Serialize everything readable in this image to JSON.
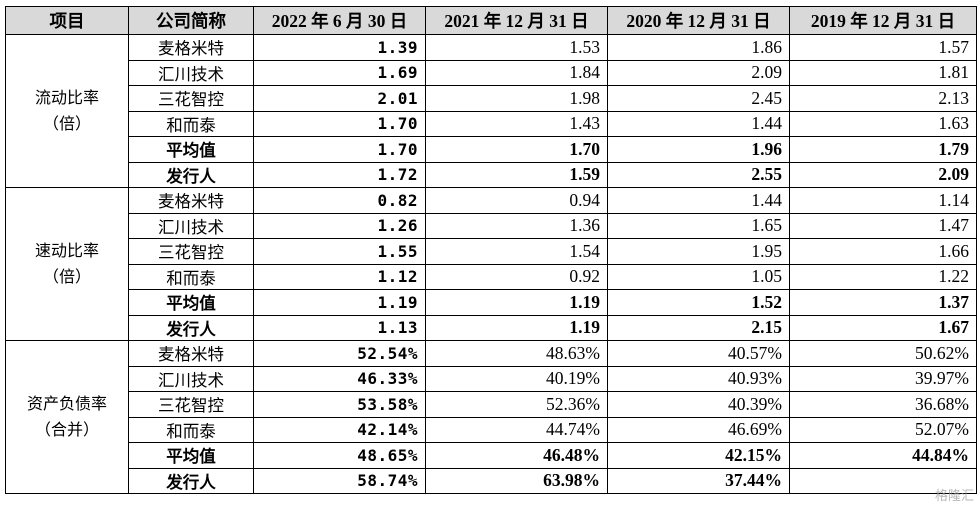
{
  "header": {
    "item": "项目",
    "company": "公司简称",
    "periods": [
      "2022 年 6 月 30 日",
      "2021 年 12 月 31 日",
      "2020 年 12 月 31 日",
      "2019 年 12 月 31 日"
    ]
  },
  "groups": [
    {
      "metric_line1": "流动比率",
      "metric_line2": "（倍）",
      "rows": [
        {
          "company": "麦格米特",
          "bold": false,
          "values": [
            "1.39",
            "1.53",
            "1.86",
            "1.57"
          ]
        },
        {
          "company": "汇川技术",
          "bold": false,
          "values": [
            "1.69",
            "1.84",
            "2.09",
            "1.81"
          ]
        },
        {
          "company": "三花智控",
          "bold": false,
          "values": [
            "2.01",
            "1.98",
            "2.45",
            "2.13"
          ]
        },
        {
          "company": "和而泰",
          "bold": false,
          "values": [
            "1.70",
            "1.43",
            "1.44",
            "1.63"
          ]
        },
        {
          "company": "平均值",
          "bold": true,
          "values": [
            "1.70",
            "1.70",
            "1.96",
            "1.79"
          ]
        },
        {
          "company": "发行人",
          "bold": true,
          "values": [
            "1.72",
            "1.59",
            "2.55",
            "2.09"
          ]
        }
      ]
    },
    {
      "metric_line1": "速动比率",
      "metric_line2": "（倍）",
      "rows": [
        {
          "company": "麦格米特",
          "bold": false,
          "values": [
            "0.82",
            "0.94",
            "1.44",
            "1.14"
          ]
        },
        {
          "company": "汇川技术",
          "bold": false,
          "values": [
            "1.26",
            "1.36",
            "1.65",
            "1.47"
          ]
        },
        {
          "company": "三花智控",
          "bold": false,
          "values": [
            "1.55",
            "1.54",
            "1.95",
            "1.66"
          ]
        },
        {
          "company": "和而泰",
          "bold": false,
          "values": [
            "1.12",
            "0.92",
            "1.05",
            "1.22"
          ]
        },
        {
          "company": "平均值",
          "bold": true,
          "values": [
            "1.19",
            "1.19",
            "1.52",
            "1.37"
          ]
        },
        {
          "company": "发行人",
          "bold": true,
          "values": [
            "1.13",
            "1.19",
            "2.15",
            "1.67"
          ]
        }
      ]
    },
    {
      "metric_line1": "资产负债率",
      "metric_line2": "（合并）",
      "rows": [
        {
          "company": "麦格米特",
          "bold": false,
          "values": [
            "52.54%",
            "48.63%",
            "40.57%",
            "50.62%"
          ]
        },
        {
          "company": "汇川技术",
          "bold": false,
          "values": [
            "46.33%",
            "40.19%",
            "40.93%",
            "39.97%"
          ]
        },
        {
          "company": "三花智控",
          "bold": false,
          "values": [
            "53.58%",
            "52.36%",
            "40.39%",
            "36.68%"
          ]
        },
        {
          "company": "和而泰",
          "bold": false,
          "values": [
            "42.14%",
            "44.74%",
            "46.69%",
            "52.07%"
          ]
        },
        {
          "company": "平均值",
          "bold": true,
          "values": [
            "48.65%",
            "46.48%",
            "42.15%",
            "44.84%"
          ]
        },
        {
          "company": "发行人",
          "bold": true,
          "values": [
            "58.74%",
            "63.98%",
            "37.44%",
            ""
          ]
        }
      ]
    }
  ],
  "watermark": "格隆汇"
}
